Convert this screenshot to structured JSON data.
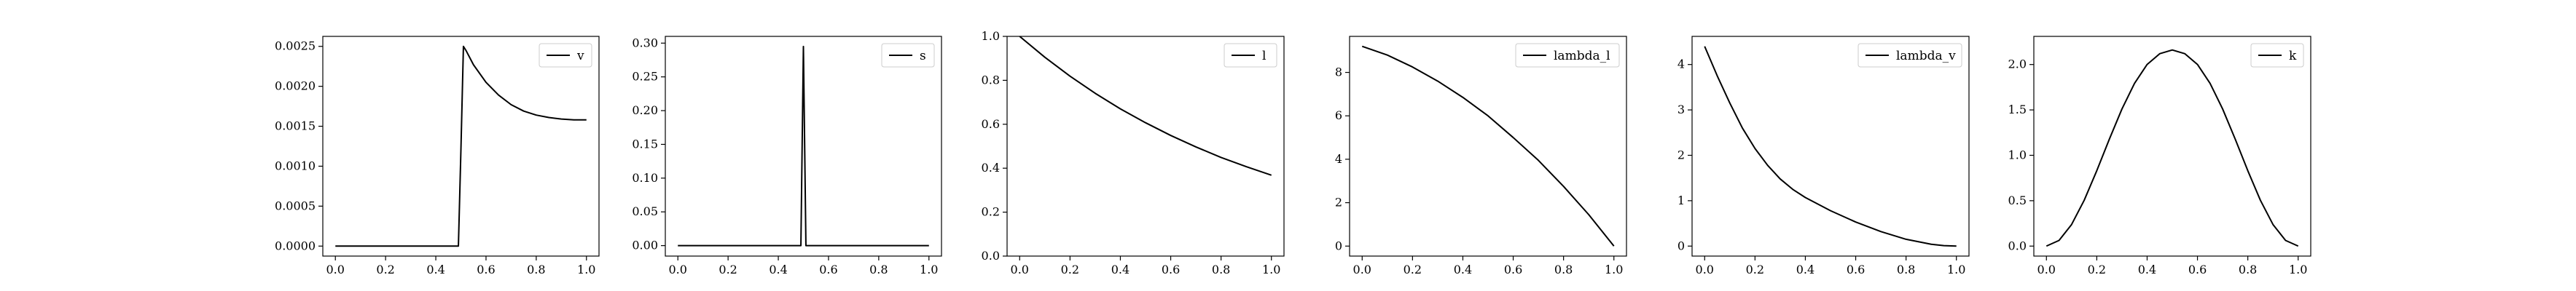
{
  "chart_data": [
    {
      "type": "line",
      "legend": "v",
      "legend_position": "top-right",
      "xlim": [
        -0.05,
        1.05
      ],
      "ylim": [
        -0.000125,
        0.002625
      ],
      "xticks": [
        0.0,
        0.2,
        0.4,
        0.6,
        0.8,
        1.0
      ],
      "xtick_labels": [
        "0.0",
        "0.2",
        "0.4",
        "0.6",
        "0.8",
        "1.0"
      ],
      "yticks": [
        0.0,
        0.0005,
        0.001,
        0.0015,
        0.002,
        0.0025
      ],
      "ytick_labels": [
        "0.0000",
        "0.0005",
        "0.0010",
        "0.0015",
        "0.0020",
        "0.0025"
      ],
      "x": [
        0.0,
        0.1,
        0.2,
        0.3,
        0.4,
        0.49,
        0.5,
        0.51,
        0.52,
        0.55,
        0.6,
        0.65,
        0.7,
        0.75,
        0.8,
        0.85,
        0.9,
        0.95,
        1.0
      ],
      "y": [
        0.0,
        0.0,
        0.0,
        0.0,
        0.0,
        0.0,
        0.0012,
        0.0025,
        0.00245,
        0.00227,
        0.00205,
        0.00189,
        0.00177,
        0.00169,
        0.00164,
        0.00161,
        0.00159,
        0.00158,
        0.00158
      ]
    },
    {
      "type": "line",
      "legend": "s",
      "legend_position": "top-right",
      "xlim": [
        -0.05,
        1.05
      ],
      "ylim": [
        -0.0155,
        0.31
      ],
      "xticks": [
        0.0,
        0.2,
        0.4,
        0.6,
        0.8,
        1.0
      ],
      "xtick_labels": [
        "0.0",
        "0.2",
        "0.4",
        "0.6",
        "0.8",
        "1.0"
      ],
      "yticks": [
        0.0,
        0.05,
        0.1,
        0.15,
        0.2,
        0.25,
        0.3
      ],
      "ytick_labels": [
        "0.00",
        "0.05",
        "0.10",
        "0.15",
        "0.20",
        "0.25",
        "0.30"
      ],
      "x": [
        0.0,
        0.2,
        0.4,
        0.49,
        0.5,
        0.51,
        0.6,
        0.8,
        1.0
      ],
      "y": [
        0.0,
        0.0,
        0.0,
        0.0,
        0.295,
        0.0,
        0.0,
        0.0,
        0.0
      ]
    },
    {
      "type": "line",
      "legend": "l",
      "legend_position": "top-right",
      "xlim": [
        -0.05,
        1.05
      ],
      "ylim": [
        0.0,
        1.0
      ],
      "xticks": [
        0.0,
        0.2,
        0.4,
        0.6,
        0.8,
        1.0
      ],
      "xtick_labels": [
        "0.0",
        "0.2",
        "0.4",
        "0.6",
        "0.8",
        "1.0"
      ],
      "yticks": [
        0.0,
        0.2,
        0.4,
        0.6,
        0.8,
        1.0
      ],
      "ytick_labels": [
        "0.0",
        "0.2",
        "0.4",
        "0.6",
        "0.8",
        "1.0"
      ],
      "x": [
        0.0,
        0.1,
        0.2,
        0.3,
        0.4,
        0.5,
        0.6,
        0.7,
        0.8,
        0.9,
        1.0
      ],
      "y": [
        1.0,
        0.905,
        0.819,
        0.741,
        0.67,
        0.607,
        0.549,
        0.497,
        0.449,
        0.407,
        0.368
      ]
    },
    {
      "type": "line",
      "legend": "lambda_l",
      "legend_position": "top-right",
      "xlim": [
        -0.05,
        1.05
      ],
      "ylim": [
        -0.46,
        9.66
      ],
      "xticks": [
        0.0,
        0.2,
        0.4,
        0.6,
        0.8,
        1.0
      ],
      "xtick_labels": [
        "0.0",
        "0.2",
        "0.4",
        "0.6",
        "0.8",
        "1.0"
      ],
      "yticks": [
        0,
        2,
        4,
        6,
        8
      ],
      "ytick_labels": [
        "0",
        "2",
        "4",
        "6",
        "8"
      ],
      "x": [
        0.0,
        0.1,
        0.2,
        0.3,
        0.4,
        0.5,
        0.6,
        0.7,
        0.8,
        0.9,
        1.0
      ],
      "y": [
        9.2,
        8.8,
        8.25,
        7.6,
        6.85,
        6.0,
        5.0,
        3.95,
        2.75,
        1.45,
        0.0
      ]
    },
    {
      "type": "line",
      "legend": "lambda_v",
      "legend_position": "top-right",
      "xlim": [
        -0.05,
        1.05
      ],
      "ylim": [
        -0.22,
        4.62
      ],
      "xticks": [
        0.0,
        0.2,
        0.4,
        0.6,
        0.8,
        1.0
      ],
      "xtick_labels": [
        "0.0",
        "0.2",
        "0.4",
        "0.6",
        "0.8",
        "1.0"
      ],
      "yticks": [
        0,
        1,
        2,
        3,
        4
      ],
      "ytick_labels": [
        "0",
        "1",
        "2",
        "3",
        "4"
      ],
      "x": [
        0.0,
        0.05,
        0.1,
        0.15,
        0.2,
        0.25,
        0.3,
        0.35,
        0.4,
        0.5,
        0.6,
        0.7,
        0.8,
        0.9,
        0.95,
        1.0
      ],
      "y": [
        4.4,
        3.75,
        3.15,
        2.6,
        2.15,
        1.78,
        1.48,
        1.25,
        1.07,
        0.78,
        0.53,
        0.32,
        0.15,
        0.04,
        0.01,
        0.0
      ]
    },
    {
      "type": "line",
      "legend": "k",
      "legend_position": "top-right",
      "xlim": [
        -0.05,
        1.05
      ],
      "ylim": [
        -0.11,
        2.31
      ],
      "xticks": [
        0.0,
        0.2,
        0.4,
        0.6,
        0.8,
        1.0
      ],
      "xtick_labels": [
        "0.0",
        "0.2",
        "0.4",
        "0.6",
        "0.8",
        "1.0"
      ],
      "yticks": [
        0.0,
        0.5,
        1.0,
        1.5,
        2.0
      ],
      "ytick_labels": [
        "0.0",
        "0.5",
        "1.0",
        "1.5",
        "2.0"
      ],
      "x": [
        0.0,
        0.05,
        0.1,
        0.15,
        0.2,
        0.25,
        0.3,
        0.35,
        0.4,
        0.45,
        0.5,
        0.55,
        0.6,
        0.65,
        0.7,
        0.75,
        0.8,
        0.85,
        0.9,
        0.95,
        1.0
      ],
      "y": [
        0.0,
        0.0207,
        0.0793,
        0.1682,
        0.2767,
        0.3926,
        0.5034,
        0.5977,
        0.6669,
        0.7063,
        0.72,
        0.7063,
        0.6669,
        0.5977,
        0.5034,
        0.3926,
        0.2767,
        0.1682,
        0.0793,
        0.0207,
        0.0
      ],
      "y_scale_factor": 3.0
    }
  ]
}
